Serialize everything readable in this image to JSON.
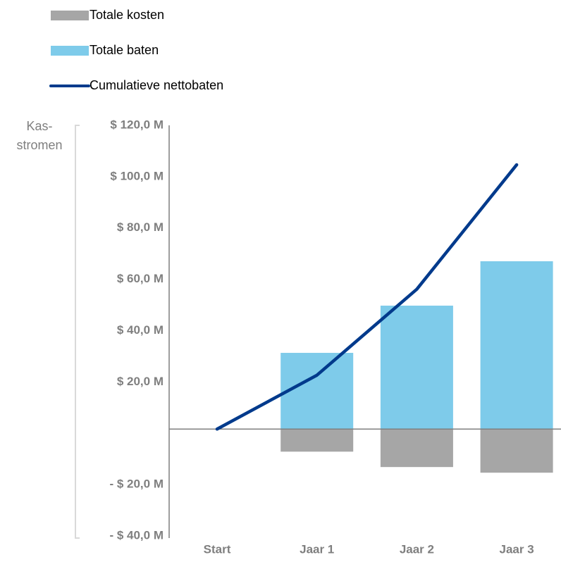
{
  "chart_data": {
    "type": "bar-line",
    "ylabel": [
      "Kas-",
      "stromen"
    ],
    "categories": [
      "Start",
      "Jaar 1",
      "Jaar 2",
      "Jaar 3"
    ],
    "series": [
      {
        "name": "Totale kosten",
        "type": "bar",
        "color": "#a6a6a6",
        "values": [
          null,
          -8.8,
          -14.8,
          -17.0
        ]
      },
      {
        "name": "Totale baten",
        "type": "bar",
        "color": "#7ecbea",
        "values": [
          null,
          29.7,
          48.1,
          65.4
        ]
      },
      {
        "name": "Cumulatieve nettobaten",
        "type": "line",
        "color": "#003a8c",
        "values": [
          0,
          21,
          54.5,
          103
        ]
      }
    ],
    "ylim": [
      -40,
      120
    ],
    "yticks": [
      {
        "value": -40,
        "label": "- $ 40,0 M"
      },
      {
        "value": -20,
        "label": "- $ 20,0 M"
      },
      {
        "value": 20,
        "label": "$ 20,0 M"
      },
      {
        "value": 40,
        "label": "$ 40,0 M"
      },
      {
        "value": 60,
        "label": "$ 60,0 M"
      },
      {
        "value": 80,
        "label": "$ 80,0 M"
      },
      {
        "value": 100,
        "label": "$ 100,0 M"
      },
      {
        "value": 120,
        "label": "$ 120,0 M"
      }
    ],
    "grid": false
  }
}
